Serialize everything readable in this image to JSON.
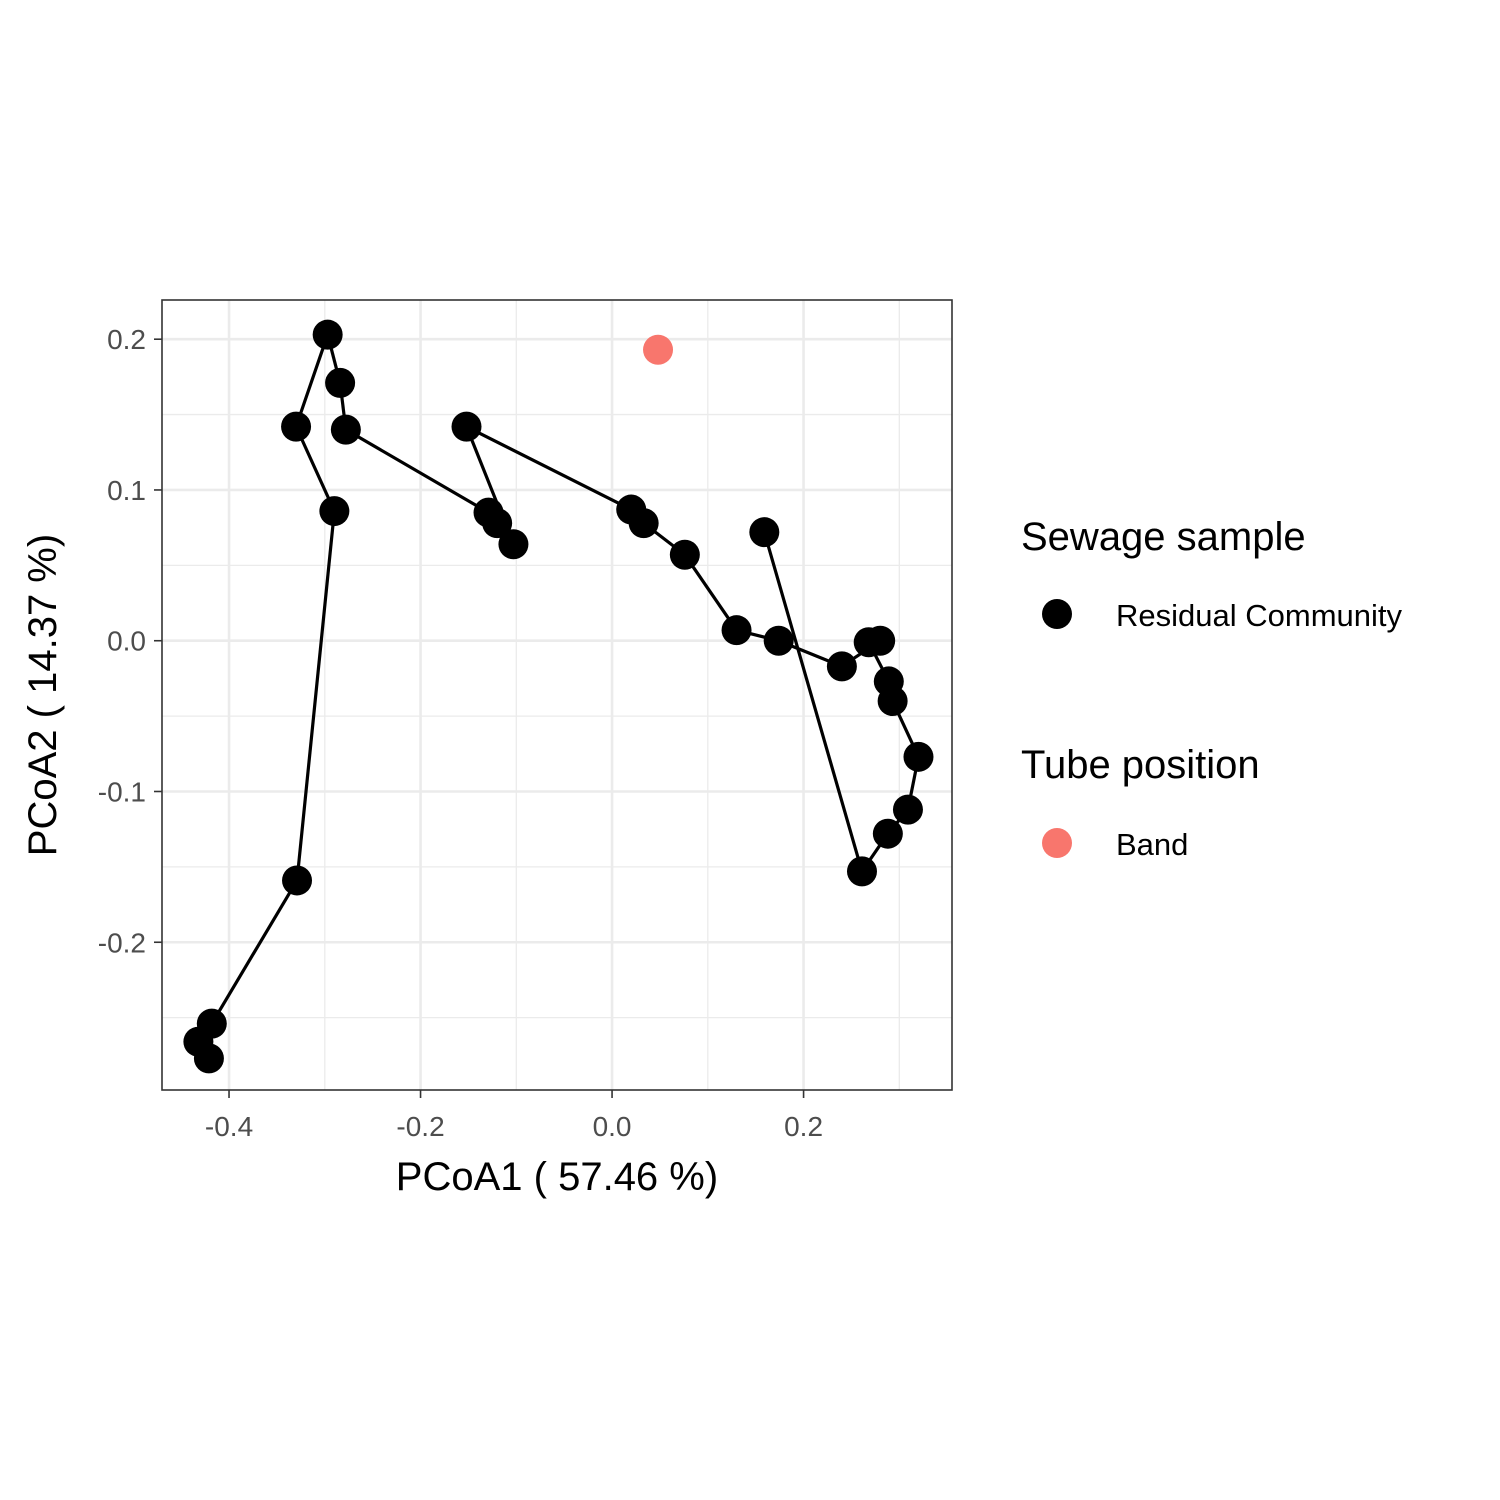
{
  "chart_data": {
    "type": "scatter",
    "title": "",
    "xlabel": "PCoA1 ( 57.46 %)",
    "ylabel": "PCoA2 ( 14.37 %)",
    "xlim": [
      -0.47,
      0.355
    ],
    "ylim": [
      -0.298,
      0.226
    ],
    "x_ticks": [
      -0.4,
      -0.2,
      0.0,
      0.2
    ],
    "y_ticks": [
      -0.2,
      -0.1,
      0.0,
      0.1,
      0.2
    ],
    "x_tick_labels": [
      "-0.4",
      "-0.2",
      "0.0",
      "0.2"
    ],
    "y_tick_labels": [
      "-0.2",
      "-0.1",
      "0.0",
      "0.1",
      "0.2"
    ],
    "grid": true,
    "legend_position": "right",
    "series": [
      {
        "name": "Residual Community",
        "color": "#000000",
        "points": [
          {
            "x": -0.421,
            "y": -0.277
          },
          {
            "x": -0.432,
            "y": -0.266
          },
          {
            "x": -0.418,
            "y": -0.254
          },
          {
            "x": -0.329,
            "y": -0.159
          },
          {
            "x": -0.29,
            "y": 0.086
          },
          {
            "x": -0.33,
            "y": 0.142
          },
          {
            "x": -0.297,
            "y": 0.203
          },
          {
            "x": -0.284,
            "y": 0.171
          },
          {
            "x": -0.278,
            "y": 0.14
          },
          {
            "x": -0.129,
            "y": 0.085
          },
          {
            "x": -0.12,
            "y": 0.078
          },
          {
            "x": -0.103,
            "y": 0.064
          },
          {
            "x": -0.152,
            "y": 0.142
          },
          {
            "x": 0.02,
            "y": 0.087
          },
          {
            "x": 0.033,
            "y": 0.078
          },
          {
            "x": 0.076,
            "y": 0.057
          },
          {
            "x": 0.13,
            "y": 0.007
          },
          {
            "x": 0.174,
            "y": 0.0
          },
          {
            "x": 0.24,
            "y": -0.017
          },
          {
            "x": 0.28,
            "y": 0.0
          },
          {
            "x": 0.268,
            "y": -0.001
          },
          {
            "x": 0.289,
            "y": -0.027
          },
          {
            "x": 0.293,
            "y": -0.04
          },
          {
            "x": 0.32,
            "y": -0.077
          },
          {
            "x": 0.309,
            "y": -0.112
          },
          {
            "x": 0.288,
            "y": -0.128
          },
          {
            "x": 0.261,
            "y": -0.153
          },
          {
            "x": 0.159,
            "y": 0.072
          }
        ]
      },
      {
        "name": "Band",
        "color": "#F8766D",
        "points": [
          {
            "x": 0.048,
            "y": 0.193
          }
        ]
      }
    ]
  },
  "legend": {
    "groups": [
      {
        "title": "Sewage sample",
        "items": [
          {
            "label": "Residual Community",
            "color": "#000000"
          }
        ]
      },
      {
        "title": "Tube position",
        "items": [
          {
            "label": "Band",
            "color": "#F8766D"
          }
        ]
      }
    ]
  }
}
